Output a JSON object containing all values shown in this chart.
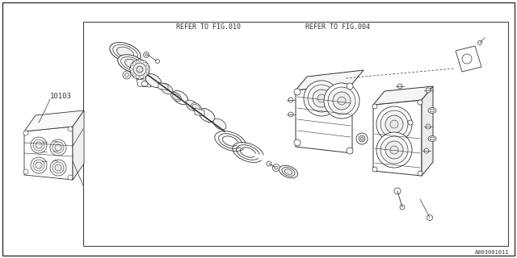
{
  "bg_color": "#ffffff",
  "line_color": "#333333",
  "text_color": "#333333",
  "fig_width": 6.4,
  "fig_height": 3.2,
  "dpi": 100,
  "part_number": "10103",
  "ref_fig010": "REFER TO FIG.010",
  "ref_fig004": "REFER TO FIG.004",
  "watermark": "A003001011"
}
